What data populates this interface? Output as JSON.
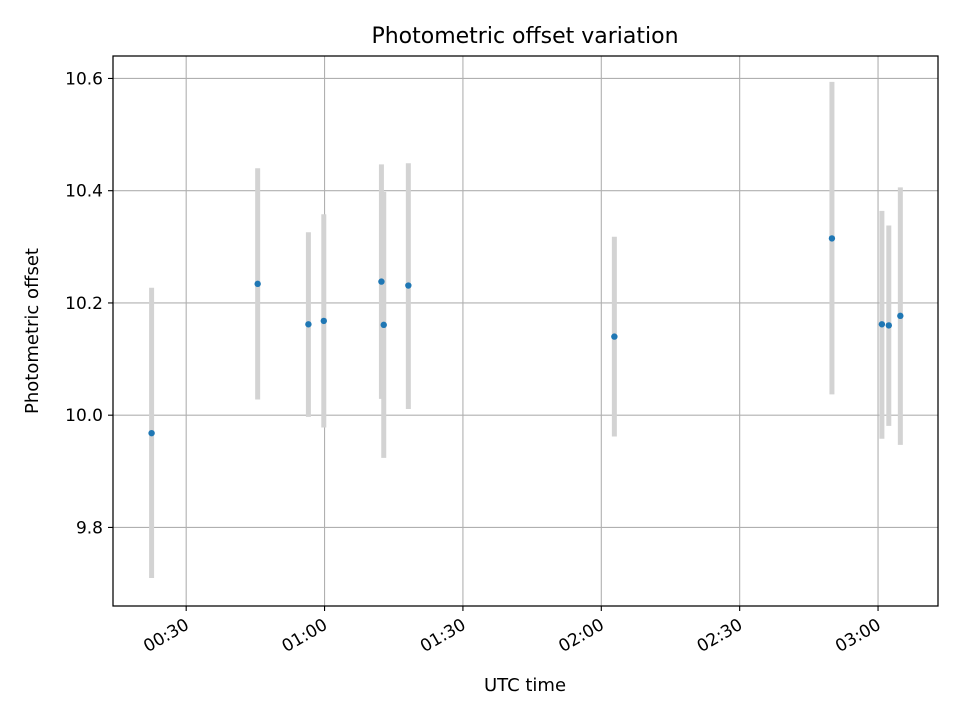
{
  "chart_data": {
    "type": "scatter",
    "title": "Photometric offset variation",
    "xlabel": "UTC time",
    "ylabel": "Photometric offset",
    "x_axis_type": "time",
    "x_tick_labels": [
      "00:30",
      "01:00",
      "01:30",
      "02:00",
      "02:30",
      "03:00"
    ],
    "xlim": [
      "00:14:08",
      "03:13:00"
    ],
    "ylim": [
      9.66,
      10.64
    ],
    "y_ticks": [
      9.8,
      10.0,
      10.2,
      10.4,
      10.6
    ],
    "y_tick_labels": [
      "9.8",
      "10.0",
      "10.2",
      "10.4",
      "10.6"
    ],
    "grid": true,
    "series": [
      {
        "marker_color": "#1f77b4",
        "errorbar_color": "#d3d3d3",
        "points": [
          {
            "x": "00:22:30",
            "y": 9.968,
            "ymin": 9.71,
            "ymax": 10.227
          },
          {
            "x": "00:45:30",
            "y": 10.234,
            "ymin": 10.028,
            "ymax": 10.44
          },
          {
            "x": "00:56:30",
            "y": 10.162,
            "ymin": 9.997,
            "ymax": 10.326
          },
          {
            "x": "00:59:50",
            "y": 10.168,
            "ymin": 9.978,
            "ymax": 10.358
          },
          {
            "x": "01:12:20",
            "y": 10.238,
            "ymin": 10.029,
            "ymax": 10.447
          },
          {
            "x": "01:12:50",
            "y": 10.161,
            "ymin": 9.924,
            "ymax": 10.398
          },
          {
            "x": "01:18:10",
            "y": 10.231,
            "ymin": 10.011,
            "ymax": 10.449
          },
          {
            "x": "02:02:50",
            "y": 10.14,
            "ymin": 9.962,
            "ymax": 10.318
          },
          {
            "x": "02:50:00",
            "y": 10.315,
            "ymin": 10.037,
            "ymax": 10.594
          },
          {
            "x": "03:00:50",
            "y": 10.162,
            "ymin": 9.958,
            "ymax": 10.364
          },
          {
            "x": "03:02:20",
            "y": 10.16,
            "ymin": 9.981,
            "ymax": 10.338
          },
          {
            "x": "03:04:50",
            "y": 10.177,
            "ymin": 9.947,
            "ymax": 10.406
          }
        ]
      }
    ]
  }
}
